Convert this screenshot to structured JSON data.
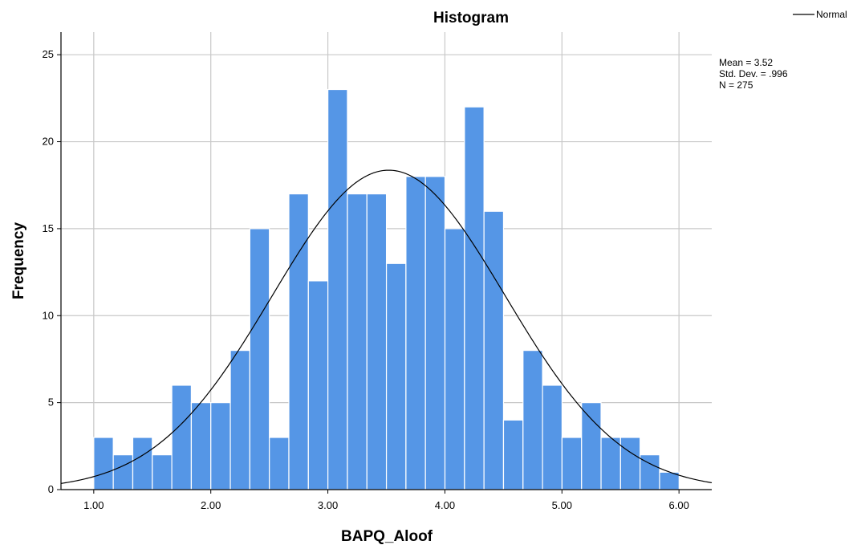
{
  "chart_data": {
    "type": "bar",
    "title": "Histogram",
    "xlabel": "BAPQ_Aloof",
    "ylabel": "Frequency",
    "xlim": [
      0.72,
      6.28
    ],
    "ylim": [
      0,
      26.3
    ],
    "xticks": [
      1.0,
      2.0,
      3.0,
      4.0,
      5.0,
      6.0
    ],
    "xtick_labels": [
      "1.00",
      "2.00",
      "3.00",
      "4.00",
      "5.00",
      "6.00"
    ],
    "yticks": [
      0,
      5,
      10,
      15,
      20,
      25
    ],
    "ytick_labels": [
      "0",
      "5",
      "10",
      "15",
      "20",
      "25"
    ],
    "grid": true,
    "bin_start": 1.0,
    "bin_width": 0.1667,
    "values": [
      3,
      2,
      3,
      2,
      6,
      5,
      5,
      8,
      15,
      3,
      17,
      12,
      23,
      17,
      17,
      13,
      18,
      18,
      15,
      22,
      16,
      4,
      8,
      6,
      3,
      5,
      3,
      3,
      2,
      1
    ],
    "bar_color": "#5596e6",
    "normal_curve": {
      "mean": 3.52,
      "std": 0.996,
      "n": 275,
      "color": "#000000"
    },
    "stats": {
      "mean_label": "Mean = 3.52",
      "std_label": "Std. Dev. = .996",
      "n_label": "N = 275"
    },
    "legend": {
      "position": "top-right",
      "label": "Normal"
    }
  }
}
